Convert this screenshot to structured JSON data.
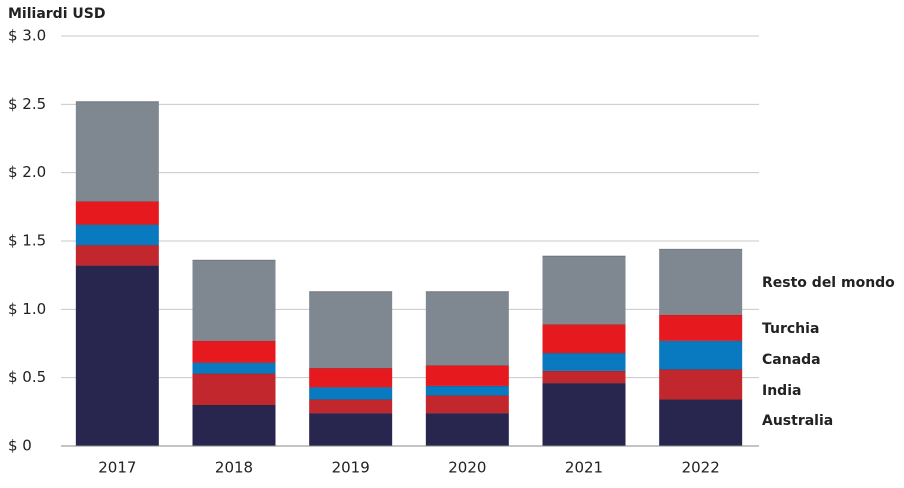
{
  "chart_data": {
    "type": "stacked_bar",
    "title": "Miliardi USD",
    "categories": [
      "2017",
      "2018",
      "2019",
      "2020",
      "2021",
      "2022"
    ],
    "series": [
      {
        "name": "Australia",
        "color": "#28264f",
        "values": [
          1.32,
          0.3,
          0.24,
          0.24,
          0.46,
          0.34
        ]
      },
      {
        "name": "India",
        "color": "#c1272d",
        "values": [
          0.15,
          0.23,
          0.1,
          0.13,
          0.09,
          0.22
        ]
      },
      {
        "name": "Canada",
        "color": "#0a7ac0",
        "values": [
          0.15,
          0.08,
          0.09,
          0.07,
          0.13,
          0.21
        ]
      },
      {
        "name": "Turchia",
        "color": "#e5191e",
        "values": [
          0.17,
          0.16,
          0.14,
          0.15,
          0.21,
          0.19
        ]
      },
      {
        "name": "Resto del mondo",
        "color": "#7f8790",
        "values": [
          0.73,
          0.59,
          0.56,
          0.54,
          0.5,
          0.48
        ]
      }
    ],
    "ylim": [
      0,
      3.0
    ],
    "yticks": [
      {
        "value": 0,
        "label": "$ 0"
      },
      {
        "value": 0.5,
        "label": "$ 0.5"
      },
      {
        "value": 1.0,
        "label": "$ 1.0"
      },
      {
        "value": 1.5,
        "label": "$ 1.5"
      },
      {
        "value": 2.0,
        "label": "$ 2.0"
      },
      {
        "value": 2.5,
        "label": "$ 2.5"
      },
      {
        "value": 3.0,
        "label": "$ 3.0"
      }
    ],
    "grid": true,
    "legend": "right"
  }
}
